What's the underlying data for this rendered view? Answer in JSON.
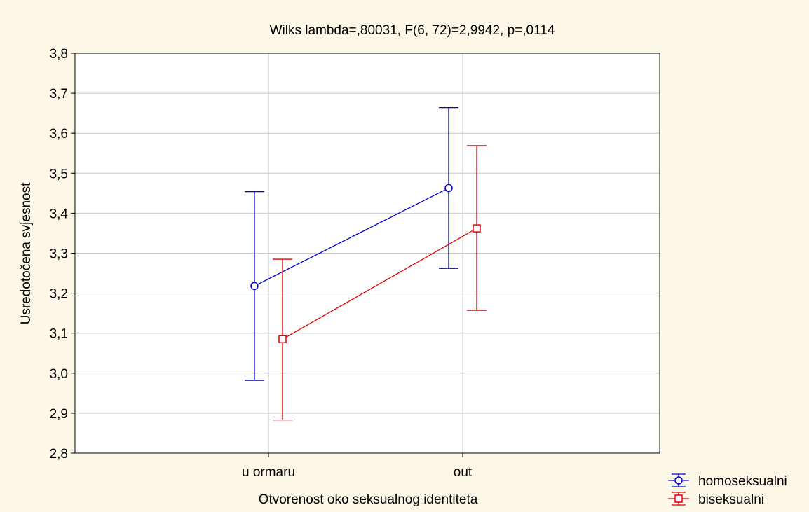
{
  "chart_data": {
    "type": "line",
    "title": "Wilks lambda=,80031, F(6, 72)=2,9942, p=,0114",
    "xlabel": "Otvorenost oko seksualnog identiteta",
    "ylabel": "Usredotočena svjesnost",
    "categories": [
      "u ormaru",
      "out"
    ],
    "ylim": [
      2.8,
      3.8
    ],
    "yticks": [
      "2,8",
      "2,9",
      "3,0",
      "3,1",
      "3,2",
      "3,3",
      "3,4",
      "3,5",
      "3,6",
      "3,7",
      "3,8"
    ],
    "ytick_values": [
      2.8,
      2.9,
      3.0,
      3.1,
      3.2,
      3.3,
      3.4,
      3.5,
      3.6,
      3.7,
      3.8
    ],
    "grid": true,
    "legend_position": "bottom-right",
    "series": [
      {
        "name": "homoseksualni",
        "color": "#0000cc",
        "marker": "circle",
        "values": [
          3.218,
          3.463
        ],
        "lower": [
          2.982,
          3.262
        ],
        "upper": [
          3.454,
          3.664
        ]
      },
      {
        "name": "biseksualni",
        "color": "#e00000",
        "marker": "square",
        "values": [
          3.085,
          3.362
        ],
        "lower": [
          2.883,
          3.157
        ],
        "upper": [
          3.285,
          3.569
        ]
      }
    ],
    "background": "#fdf7e8",
    "plot_background": "#ffffff"
  }
}
